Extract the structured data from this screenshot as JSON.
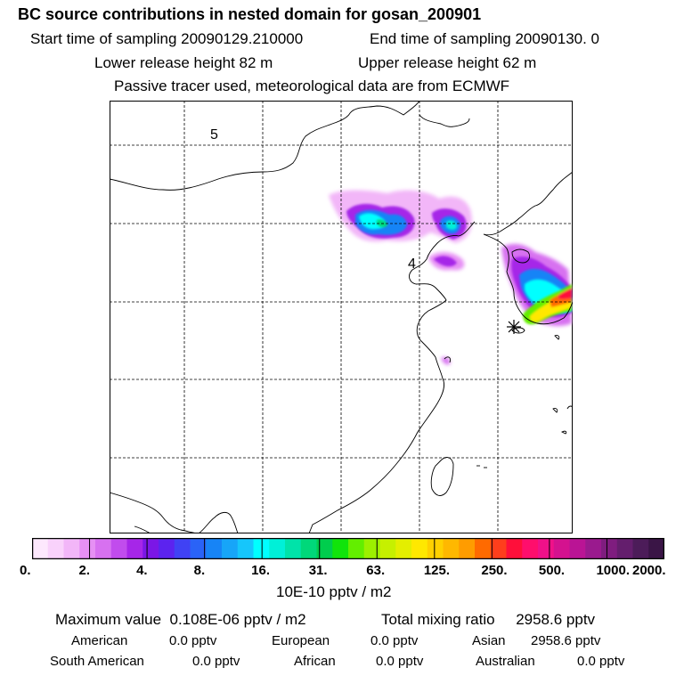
{
  "header": {
    "title": "BC  source contributions in nested domain for gosan_200901",
    "start_time": "Start time of sampling 20090129.210000",
    "end_time": "End time of sampling 20090130.     0",
    "lower_release": "Lower release height   82 m",
    "upper_release": "Upper release height   62 m",
    "tracer_note": "Passive tracer used, meteorological data are from ECMWF"
  },
  "map": {
    "labels": [
      "5",
      "4"
    ]
  },
  "colorbar": {
    "ticks": [
      "0.",
      "2.",
      "4.",
      "8.",
      "16.",
      "31.",
      "63.",
      "125.",
      "250.",
      "500.",
      "1000.",
      "2000."
    ],
    "units": "10E-10 pptv / m2",
    "colors": [
      "#fde8fd",
      "#f9d2fb",
      "#f2b6f8",
      "#e690f4",
      "#d771f0",
      "#c14ced",
      "#a626e8",
      "#7b17e6",
      "#5c23ef",
      "#4042f4",
      "#2a63f7",
      "#1784f6",
      "#17a5f8",
      "#16c6fb",
      "#00ffff",
      "#00f0d8",
      "#00e3a9",
      "#00d87a",
      "#00cd4d",
      "#11e40b",
      "#63ee00",
      "#9cf000",
      "#c6f000",
      "#e4ee00",
      "#ffe800",
      "#ffd000",
      "#ffb800",
      "#ff9c00",
      "#ff6a00",
      "#ff3e1c",
      "#ff0f3a",
      "#ff0e6c",
      "#f01189",
      "#d4128f",
      "#ba1495",
      "#9a1a8e",
      "#7f1d7f",
      "#641e6d",
      "#4c1c59",
      "#3a1546"
    ]
  },
  "summary": {
    "max_label": "Maximum value",
    "max_value": "0.108E-06 pptv / m2",
    "total_label": "Total mixing ratio",
    "total_value": "2958.6 pptv",
    "regions": [
      {
        "name": "American",
        "value": "0.0 pptv"
      },
      {
        "name": "European",
        "value": "0.0 pptv"
      },
      {
        "name": "Asian",
        "value": "2958.6 pptv"
      },
      {
        "name": "South American",
        "value": "0.0 pptv"
      },
      {
        "name": "African",
        "value": "0.0 pptv"
      },
      {
        "name": "Australian",
        "value": "0.0 pptv"
      }
    ]
  }
}
